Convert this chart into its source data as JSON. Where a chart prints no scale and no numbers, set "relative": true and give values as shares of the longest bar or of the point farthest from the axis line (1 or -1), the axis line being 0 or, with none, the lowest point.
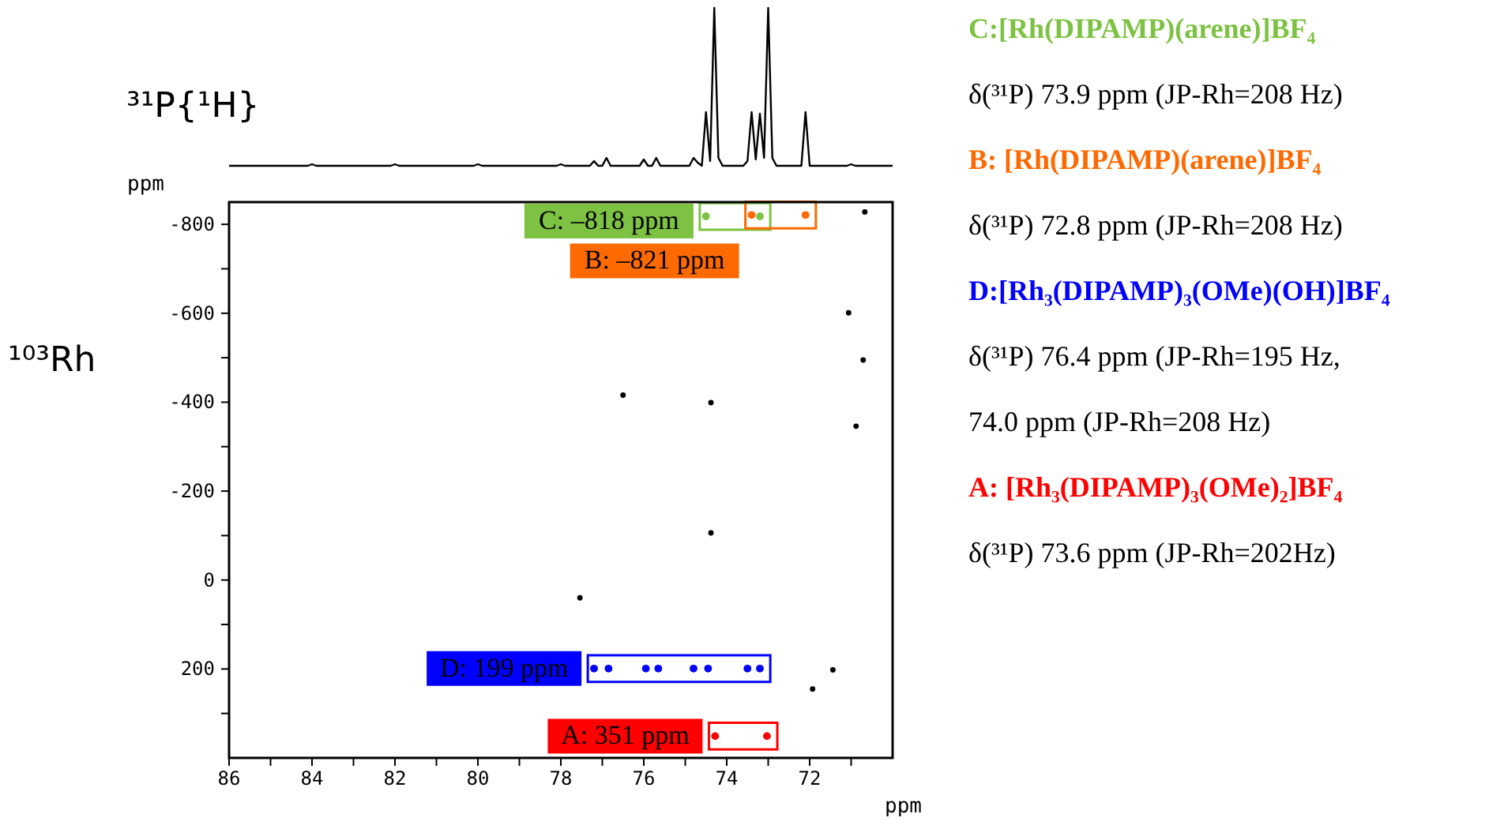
{
  "chart_data": [
    {
      "type": "line",
      "relative": true,
      "color": "#000000",
      "tick_labels": false,
      "annotations": [
        "³¹P{¹H}"
      ],
      "categories": [
        null,
        null,
        null,
        null,
        null,
        null,
        null,
        null,
        null,
        null,
        null,
        null,
        null,
        null,
        null,
        null,
        null,
        null,
        null,
        null,
        null,
        null,
        null,
        null,
        null,
        null,
        null,
        null,
        null,
        null,
        null,
        null,
        null,
        null,
        null,
        null,
        null,
        null,
        null,
        null,
        null,
        null,
        null,
        null,
        null,
        null,
        null,
        null,
        null,
        null,
        null,
        null,
        null,
        null,
        null,
        null,
        null,
        null,
        null,
        null,
        null,
        null,
        null,
        null,
        null,
        null,
        null,
        null,
        null,
        null,
        null,
        null,
        null,
        null,
        null,
        null,
        null,
        null,
        null,
        null,
        null,
        null,
        null,
        null,
        null,
        null,
        null,
        null,
        null,
        null,
        null,
        null,
        null,
        null,
        null,
        null,
        null,
        null,
        null,
        null,
        null,
        null,
        null,
        null,
        null,
        null,
        null,
        null,
        null,
        null,
        null,
        null,
        null,
        null,
        null,
        null,
        null,
        null,
        null,
        null,
        null,
        null,
        null,
        null,
        null,
        null,
        null,
        null,
        null,
        null,
        null,
        null,
        null,
        null,
        null,
        null,
        null,
        null,
        null,
        null,
        null,
        null,
        null,
        null,
        null,
        null,
        null,
        null,
        null,
        null,
        null,
        null,
        null,
        null,
        null,
        null,
        null,
        null,
        null,
        null,
        null
      ],
      "values": [
        0,
        0,
        0,
        0,
        0,
        0,
        0,
        0,
        0,
        0,
        0,
        0,
        0,
        0,
        0,
        0,
        0,
        0,
        0,
        0,
        0.01,
        0,
        0,
        0,
        0,
        0,
        0,
        0,
        0,
        0,
        0,
        0,
        0,
        0,
        0,
        0,
        0,
        0,
        0,
        0,
        0.01,
        0,
        0,
        0,
        0,
        0,
        0,
        0,
        0,
        0,
        0,
        0,
        0,
        0,
        0,
        0,
        0,
        0,
        0,
        0,
        0.01,
        0,
        0,
        0,
        0,
        0,
        0,
        0,
        0,
        0,
        0,
        0,
        0,
        0,
        0,
        0,
        0,
        0,
        0,
        0,
        0.01,
        0,
        0,
        0,
        0,
        0,
        0,
        0,
        0.03,
        0,
        0,
        0.05,
        0,
        0,
        0,
        0,
        0,
        0,
        0,
        0,
        0.04,
        0,
        0,
        0.05,
        0,
        0,
        0,
        0,
        0,
        0,
        0,
        0,
        0.05,
        0.02,
        0,
        0.34,
        0.03,
        1,
        0.05,
        0,
        0,
        0,
        0,
        0,
        0,
        0.03,
        0.34,
        0.04,
        0.33,
        0.05,
        1,
        0.05,
        0,
        0,
        0,
        0,
        0,
        0,
        0,
        0.34,
        0,
        0,
        0,
        0,
        0,
        0,
        0,
        0,
        0,
        0,
        0.01,
        0,
        0,
        0,
        0,
        0,
        0,
        0,
        0,
        0,
        0
      ]
    },
    {
      "type": "scatter",
      "xlabel": "ppm",
      "ylabel": "ppm",
      "xlim": [
        86,
        70
      ],
      "ylim": [
        400,
        -850
      ],
      "marker": "circle",
      "legend": "right",
      "xticks": [
        86,
        {
          "value": 85,
          "label": null
        },
        84,
        {
          "value": 83,
          "label": null
        },
        82,
        {
          "value": 81,
          "label": null
        },
        80,
        {
          "value": 79,
          "label": null
        },
        78,
        {
          "value": 77,
          "label": null
        },
        76,
        {
          "value": 75,
          "label": null
        },
        74,
        {
          "value": 73,
          "label": null
        },
        72,
        {
          "value": 71,
          "label": null
        }
      ],
      "yticks": [
        -800,
        {
          "value": -700,
          "label": null
        },
        -600,
        {
          "value": -500,
          "label": null
        },
        -400,
        {
          "value": -300,
          "label": null
        },
        -200,
        {
          "value": -100,
          "label": null
        },
        0,
        {
          "value": 100,
          "label": null
        },
        200,
        {
          "value": 300,
          "label": null
        }
      ],
      "series": [
        {
          "name": "C: –818 ppm",
          "color": "#7dc242",
          "x": [
            74.5,
            73.2
          ],
          "values": [
            -818,
            -818
          ]
        },
        {
          "name": "B: –821 ppm",
          "color": "#ff6a00",
          "x": [
            73.4,
            72.1
          ],
          "values": [
            -821,
            -821
          ]
        },
        {
          "name": "D: 199 ppm",
          "color": "#0000ff",
          "x": [
            77.2,
            76.85,
            75.95,
            75.65,
            74.8,
            74.45,
            73.5,
            73.2
          ],
          "values": [
            199,
            199,
            199,
            199,
            199,
            199,
            199,
            199
          ]
        },
        {
          "name": "A: 351 ppm",
          "color": "#ff0000",
          "x": [
            74.28,
            73.03
          ],
          "values": [
            351,
            351
          ]
        },
        {
          "color": "#000000",
          "x": [
            70.67,
            71.06,
            70.71,
            76.5,
            74.38,
            70.88,
            74.38,
            77.54,
            71.44,
            71.93
          ],
          "values": [
            -828,
            -601,
            -495,
            -416,
            -399,
            -346,
            -106,
            40,
            202,
            245
          ]
        }
      ],
      "annotations": [
        "¹⁰³Rh"
      ]
    },
    {
      "type": "other",
      "annotations": [
        "C:[Rh(DIPAMP)(arene)]BF₄",
        "δ(³¹P) 73.9 ppm (JP-Rh=208 Hz)",
        "B: [Rh(DIPAMP)(arene)]BF₄",
        "δ(³¹P) 72.8 ppm (JP-Rh=208 Hz)",
        "D:[Rh₃(DIPAMP)₃(OMe)(OH)]BF₄",
        "δ(³¹P) 76.4 ppm (JP-Rh=195 Hz,",
        "74.0 ppm (JP-Rh=208 Hz)",
        "A: [Rh₃(DIPAMP)₃(OMe)₂]BF₄",
        "δ(³¹P) 73.6 ppm (JP-Rh=202Hz)"
      ],
      "colors": [
        "#7dc242",
        "#000000",
        "#ff6a00",
        "#000000",
        "#0000ff",
        "#000000",
        "#000000",
        "#ff0000",
        "#000000"
      ]
    }
  ]
}
